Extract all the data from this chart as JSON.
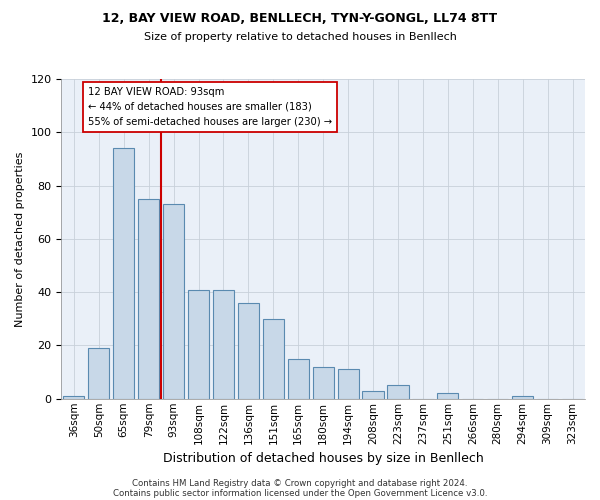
{
  "title1": "12, BAY VIEW ROAD, BENLLECH, TYN-Y-GONGL, LL74 8TT",
  "title2": "Size of property relative to detached houses in Benllech",
  "xlabel": "Distribution of detached houses by size in Benllech",
  "ylabel": "Number of detached properties",
  "bar_labels": [
    "36sqm",
    "50sqm",
    "65sqm",
    "79sqm",
    "93sqm",
    "108sqm",
    "122sqm",
    "136sqm",
    "151sqm",
    "165sqm",
    "180sqm",
    "194sqm",
    "208sqm",
    "223sqm",
    "237sqm",
    "251sqm",
    "266sqm",
    "280sqm",
    "294sqm",
    "309sqm",
    "323sqm"
  ],
  "bar_values": [
    1,
    19,
    94,
    75,
    73,
    41,
    41,
    36,
    30,
    15,
    12,
    11,
    3,
    5,
    0,
    2,
    0,
    0,
    1,
    0,
    0
  ],
  "bar_color": "#c8d8e8",
  "bar_edge_color": "#5a8ab0",
  "vline_color": "#cc0000",
  "annotation_title": "12 BAY VIEW ROAD: 93sqm",
  "annotation_line1": "← 44% of detached houses are smaller (183)",
  "annotation_line2": "55% of semi-detached houses are larger (230) →",
  "annotation_box_color": "#ffffff",
  "annotation_box_edge": "#cc0000",
  "ylim": [
    0,
    120
  ],
  "yticks": [
    0,
    20,
    40,
    60,
    80,
    100,
    120
  ],
  "footer1": "Contains HM Land Registry data © Crown copyright and database right 2024.",
  "footer2": "Contains public sector information licensed under the Open Government Licence v3.0.",
  "bg_color": "#eaf0f8"
}
